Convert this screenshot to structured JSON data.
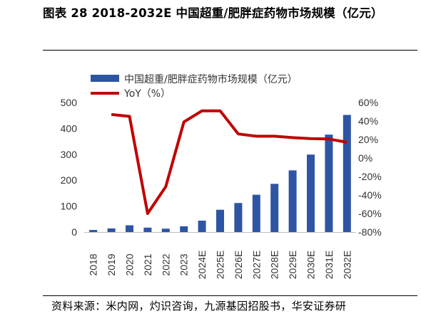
{
  "header": {
    "title": "图表 28 2018-2032E 中国超重/肥胖症药物市场规模（亿元）",
    "right_cut_top": "",
    "right_cut_bottom": ""
  },
  "source": {
    "text": "资料来源：米内网，灼识咨询，九源基因招股书，华安证券研"
  },
  "colors": {
    "bar": "#2E55A4",
    "line": "#C00000"
  },
  "chart_data": {
    "type": "bar",
    "categories": [
      "2018",
      "2019",
      "2020",
      "2021",
      "2022",
      "2023",
      "2024E",
      "2025E",
      "2026E",
      "2027E",
      "2028E",
      "2029E",
      "2030E",
      "2031E",
      "2032E"
    ],
    "series": [
      {
        "name": "中国超重/肥胖症药物市场规模（亿元）",
        "type": "bar",
        "axis": "left",
        "values": [
          8,
          14,
          26,
          17,
          13,
          22,
          44,
          86,
          112,
          144,
          186,
          238,
          299,
          376,
          452
        ]
      },
      {
        "name": "YoY（%）",
        "type": "line",
        "axis": "right",
        "values": [
          null,
          47,
          45,
          -60,
          -31,
          39,
          51,
          51,
          26,
          23.5,
          23.5,
          22,
          21,
          20.5,
          17
        ]
      }
    ],
    "left_axis": {
      "ylim": [
        0,
        500
      ],
      "ticks": [
        "0",
        "100",
        "200",
        "300",
        "400",
        "500"
      ]
    },
    "right_axis": {
      "ylim": [
        -80,
        60
      ],
      "ticks": [
        "-80%",
        "-60%",
        "-40%",
        "-20%",
        "0%",
        "20%",
        "40%",
        "60%"
      ]
    },
    "legend_position": "top-left",
    "grid": false
  }
}
